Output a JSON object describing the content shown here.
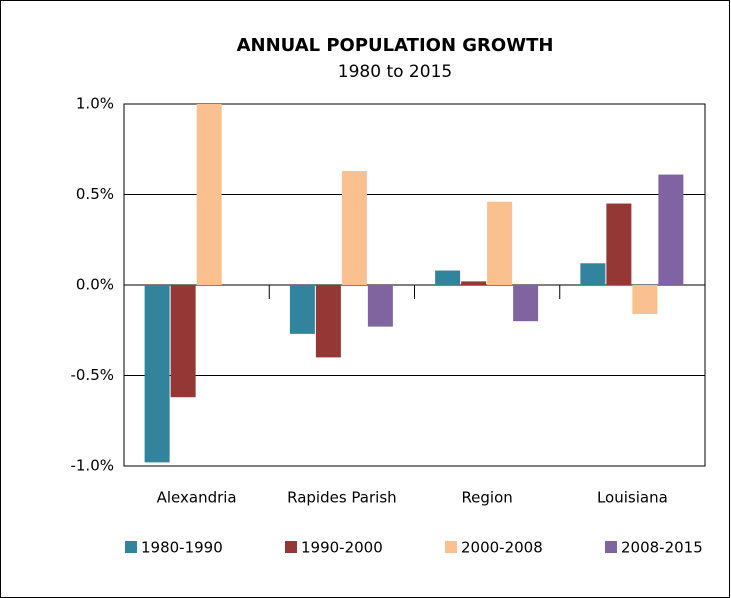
{
  "chart_data": {
    "type": "bar",
    "title": "ANNUAL POPULATION GROWTH",
    "subtitle": "1980 to 2015",
    "categories": [
      "Alexandria",
      "Rapides Parish",
      "Region",
      "Louisiana"
    ],
    "series": [
      {
        "name": "1980-1990",
        "color": "#31849b",
        "values": [
          -0.98,
          -0.27,
          0.08,
          0.12
        ]
      },
      {
        "name": "1990-2000",
        "color": "#953735",
        "values": [
          -0.62,
          -0.4,
          0.02,
          0.45
        ]
      },
      {
        "name": "2000-2008",
        "color": "#fac090",
        "values": [
          1.0,
          0.63,
          0.46,
          -0.16
        ]
      },
      {
        "name": "2008-2015",
        "color": "#8064a2",
        "values": [
          null,
          -0.23,
          -0.2,
          0.61
        ]
      }
    ],
    "ylim": [
      -1.0,
      1.0
    ],
    "yticks": [
      {
        "value": -1.0,
        "label": "-1.0%"
      },
      {
        "value": -0.5,
        "label": "-0.5%"
      },
      {
        "value": 0.0,
        "label": "0.0%"
      },
      {
        "value": 0.5,
        "label": "0.5%"
      },
      {
        "value": 1.0,
        "label": "1.0%"
      }
    ],
    "grid": true,
    "legend": "bottom"
  }
}
